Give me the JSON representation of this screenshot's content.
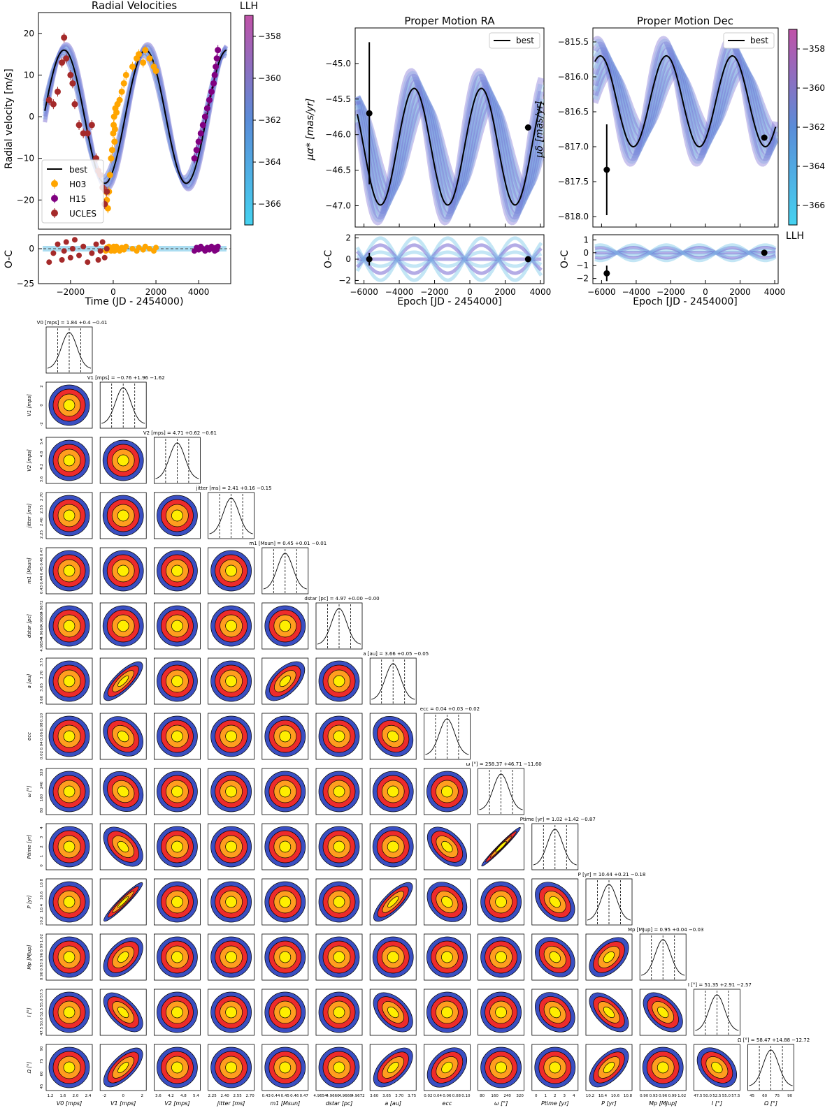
{
  "figure": {
    "top_left": {
      "title": "Radial Velocities",
      "ylabel": "Radial velocity [m/s]",
      "xlabel": "Time (JD - 2454000)",
      "oc_ylabel": "O-C",
      "colorbar_label": "LLH",
      "legend": [
        "best",
        "H03",
        "H15",
        "UCLES"
      ]
    },
    "top_middle": {
      "title": "Proper Motion RA",
      "ylabel": "μα* [mas/yr]",
      "xlabel": "Epoch [JD - 2454000]",
      "oc_ylabel": "O-C",
      "legend": [
        "best"
      ]
    },
    "top_right": {
      "title": "Proper Motion Dec",
      "ylabel": "μδ [mas/yr]",
      "xlabel": "Epoch [JD - 2454000]",
      "oc_ylabel": "O-C",
      "colorbar_label": "LLH",
      "legend": [
        "best"
      ]
    }
  },
  "colors": {
    "best": "#000000",
    "H03": "#ffa500",
    "H15": "#800080",
    "UCLES": "#a52a2a",
    "band_light": "#87ceeb",
    "band_dark": "#6a5acd",
    "contour_outer": "#3a4fc2",
    "contour_mid": "#ee2b2b",
    "contour_inner": "#ff9d1f",
    "contour_core": "#ffee00"
  },
  "chart_data": [
    {
      "type": "scatter",
      "title": "Radial Velocities",
      "xlabel": "Time (JD - 2454000)",
      "ylabel": "Radial velocity [m/s]",
      "xlim": [
        -3500,
        5500
      ],
      "ylim": [
        -27,
        25
      ],
      "xticks": [
        -2000,
        0,
        2000,
        4000
      ],
      "yticks": [
        -20,
        -10,
        0,
        10,
        20
      ],
      "best_model": {
        "amplitude": 16,
        "period_days": 3813,
        "peak_time": -2300,
        "offset": 0
      },
      "series": [
        {
          "name": "H03",
          "x": [
            -350,
            -300,
            -250,
            -200,
            -150,
            -100,
            -50,
            0,
            20,
            40,
            60,
            80,
            100,
            150,
            200,
            300,
            400,
            500,
            600,
            900,
            1100,
            1200,
            1400,
            1500,
            1700,
            1900,
            2000
          ],
          "y": [
            -18,
            -20,
            -22,
            -18,
            -14,
            -10,
            -8,
            -4,
            -2,
            0,
            -6,
            -3,
            2,
            1,
            3,
            4,
            6,
            8,
            10,
            12,
            14,
            15,
            13,
            16,
            14,
            12,
            11
          ]
        },
        {
          "name": "H15",
          "x": [
            3800,
            3900,
            4000,
            4100,
            4200,
            4300,
            4400,
            4500,
            4600,
            4700,
            4750,
            4800,
            4850,
            4900
          ],
          "y": [
            -10,
            -8,
            -6,
            -4,
            -2,
            0,
            2,
            4,
            6,
            8,
            10,
            12,
            14,
            16
          ]
        },
        {
          "name": "UCLES",
          "x": [
            -3000,
            -2800,
            -2600,
            -2400,
            -2300,
            -2200,
            -2000,
            -1900,
            -1800,
            -1600,
            -1400,
            -1200,
            -1000,
            -800,
            -700,
            -600,
            -500,
            -400,
            -300
          ],
          "y": [
            4,
            3,
            6,
            13,
            19,
            14,
            10,
            8,
            3,
            -2,
            -4,
            -4,
            -2,
            -10,
            -13,
            -14,
            -17,
            -21,
            -18
          ]
        }
      ],
      "oc": {
        "xlabel": "Time (JD - 2454000)",
        "ylabel": "O-C",
        "ylim": [
          -25,
          10
        ],
        "yticks": [
          -25,
          0
        ]
      },
      "colorbar": {
        "label": "LLH",
        "range": [
          -367,
          -357
        ],
        "ticks": [
          -358,
          -360,
          -362,
          -364,
          -366
        ]
      }
    },
    {
      "type": "line",
      "title": "Proper Motion RA",
      "xlabel": "Epoch [JD - 2454000]",
      "ylabel": "μα* [mas/yr]",
      "xlim": [
        -6500,
        4200
      ],
      "ylim": [
        -47.3,
        -44.5
      ],
      "xticks": [
        -6000,
        -4000,
        -2000,
        0,
        2000,
        4000
      ],
      "yticks": [
        -45.0,
        -45.5,
        -46.0,
        -46.5,
        -47.0
      ],
      "best_model": {
        "mean": -46.17,
        "amplitude": 0.82,
        "period_days": 3813
      },
      "points": [
        {
          "x": -5700,
          "y": -45.7,
          "err": 1.0
        },
        {
          "x": 3300,
          "y": -45.9,
          "err": 0.02
        }
      ],
      "oc": {
        "ylabel": "O-C",
        "ylim": [
          -2.3,
          2.3
        ],
        "yticks": [
          -2,
          0,
          2
        ]
      },
      "legend": "upper right"
    },
    {
      "type": "line",
      "title": "Proper Motion Dec",
      "xlabel": "Epoch [JD - 2454000]",
      "ylabel": "μδ [mas/yr]",
      "xlim": [
        -6500,
        4200
      ],
      "ylim": [
        -818.15,
        -815.3
      ],
      "xticks": [
        -6000,
        -4000,
        -2000,
        0,
        2000,
        4000
      ],
      "yticks": [
        -815.5,
        -816.0,
        -816.5,
        -817.0,
        -817.5,
        -818.0
      ],
      "best_model": {
        "mean": -816.35,
        "amplitude": 0.65,
        "period_days": 3813
      },
      "points": [
        {
          "x": -5700,
          "y": -817.33,
          "err": 0.65
        },
        {
          "x": 3400,
          "y": -816.87,
          "err": 0.02
        }
      ],
      "oc": {
        "ylabel": "O-C",
        "ylim": [
          -2.4,
          1.4
        ],
        "yticks": [
          -2,
          -1,
          0,
          1
        ]
      },
      "colorbar": {
        "label": "LLH",
        "range": [
          -367,
          -357
        ],
        "ticks": [
          -358,
          -360,
          -362,
          -364,
          -366
        ]
      },
      "legend": "upper right"
    },
    {
      "type": "corner",
      "parameters": [
        {
          "label": "V0 [mps]",
          "title": "V0 [mps] = 1.84 +0.4 −0.41",
          "ticks": [
            "1.2",
            "1.6",
            "2.0",
            "2.4"
          ]
        },
        {
          "label": "V1 [mps]",
          "title": "V1 [mps] = −0.76 +1.96 −1.62",
          "ticks": [
            "-2",
            "0",
            "2"
          ]
        },
        {
          "label": "V2 [mps]",
          "title": "V2 [mps] = 4.71 +0.62 −0.61",
          "ticks": [
            "3.6",
            "4.2",
            "4.8",
            "5.4"
          ]
        },
        {
          "label": "jitter [ms]",
          "title": "jitter [ms] = 2.41 +0.16 −0.15",
          "ticks": [
            "2.25",
            "2.40",
            "2.55",
            "2.70"
          ]
        },
        {
          "label": "m1 [Msun]",
          "title": "m1 [Msun] = 0.45 +0.01 −0.01",
          "ticks": [
            "0.43",
            "0.44",
            "0.45",
            "0.46",
            "0.47"
          ]
        },
        {
          "label": "dstar [pc]",
          "title": "dstar [pc] = 4.97 +0.00 −0.00",
          "ticks": [
            "4.9654",
            "4.9660",
            "4.9666",
            "4.9672"
          ]
        },
        {
          "label": "a [au]",
          "title": "a [au] = 3.66 +0.05 −0.05",
          "ticks": [
            "3.60",
            "3.65",
            "3.70",
            "3.75"
          ]
        },
        {
          "label": "ecc",
          "title": "ecc = 0.04 +0.03 −0.02",
          "ticks": [
            "0.02",
            "0.04",
            "0.06",
            "0.08",
            "0.10"
          ]
        },
        {
          "label": "ω [°]",
          "title": "ω [°] = 258.37 +46.71 −11.60",
          "ticks": [
            "80",
            "160",
            "240",
            "320"
          ]
        },
        {
          "label": "Ptime [yr]",
          "title": "Ptime [yr] = 1.02 +1.42 −0.87",
          "ticks": [
            "0",
            "1",
            "2",
            "3",
            "4"
          ]
        },
        {
          "label": "P [yr]",
          "title": "P [yr] = 10.44 +0.21 −0.18",
          "ticks": [
            "10.2",
            "10.4",
            "10.6",
            "10.8"
          ]
        },
        {
          "label": "Mp [MJup]",
          "title": "Mp [MJup] = 0.95 +0.04 −0.03",
          "ticks": [
            "0.90",
            "0.93",
            "0.96",
            "0.99",
            "1.02"
          ]
        },
        {
          "label": "I [°]",
          "title": "I [°] = 51.35 +2.91 −2.57",
          "ticks": [
            "47.5",
            "50.0",
            "52.5",
            "55.0",
            "57.5"
          ]
        },
        {
          "label": "Ω [°]",
          "title": "Ω [°] = 58.47 +14.88 −12.72",
          "ticks": [
            "45",
            "60",
            "75",
            "90"
          ]
        }
      ],
      "correlations": [
        [
          1,
          6,
          0.8
        ],
        [
          1,
          10,
          0.95
        ],
        [
          1,
          11,
          0.5
        ],
        [
          1,
          12,
          -0.6
        ],
        [
          1,
          13,
          0.7
        ],
        [
          1,
          9,
          -0.5
        ],
        [
          4,
          6,
          0.6
        ],
        [
          6,
          10,
          0.8
        ],
        [
          6,
          12,
          -0.5
        ],
        [
          6,
          13,
          0.6
        ],
        [
          10,
          13,
          0.6
        ],
        [
          10,
          12,
          -0.6
        ],
        [
          10,
          11,
          0.5
        ],
        [
          11,
          12,
          -0.5
        ],
        [
          9,
          10,
          -0.4
        ],
        [
          8,
          9,
          0.99
        ],
        [
          9,
          11,
          -0.3
        ],
        [
          9,
          12,
          -0.3
        ],
        [
          7,
          9,
          -0.5
        ],
        [
          7,
          10,
          -0.3
        ],
        [
          7,
          13,
          0.4
        ],
        [
          12,
          13,
          -0.4
        ],
        [
          1,
          7,
          -0.3
        ],
        [
          1,
          8,
          -0.2
        ],
        [
          6,
          7,
          -0.2
        ]
      ]
    }
  ]
}
